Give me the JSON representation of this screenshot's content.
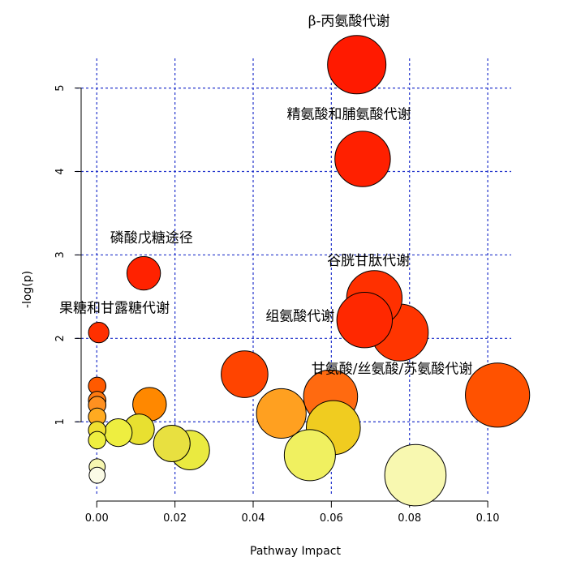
{
  "chart_data": {
    "type": "scatter",
    "title": "",
    "xlabel": "Pathway Impact",
    "ylabel": "-log(p)",
    "xlim": [
      -0.004,
      0.106
    ],
    "ylim": [
      0.05,
      5.55
    ],
    "xticks": [
      "0.00",
      "0.02",
      "0.04",
      "0.06",
      "0.08",
      "0.10"
    ],
    "xtick_values": [
      0.0,
      0.02,
      0.04,
      0.06,
      0.08,
      0.1
    ],
    "yticks": [
      "1",
      "2",
      "3",
      "4",
      "5"
    ],
    "ytick_values": [
      1,
      2,
      3,
      4,
      5
    ],
    "grid": true,
    "grid_color": "#2233cc",
    "points": [
      {
        "x": 0.0665,
        "y": 5.28,
        "r": 2.0,
        "color": "#ff1a00"
      },
      {
        "x": 0.068,
        "y": 4.15,
        "r": 1.9,
        "color": "#ff2000"
      },
      {
        "x": 0.012,
        "y": 2.78,
        "r": 1.15,
        "color": "#ff2200"
      },
      {
        "x": 0.0005,
        "y": 2.07,
        "r": 0.7,
        "color": "#ff3000"
      },
      {
        "x": 0.071,
        "y": 2.48,
        "r": 1.9,
        "color": "#ff3000"
      },
      {
        "x": 0.0685,
        "y": 2.22,
        "r": 1.9,
        "color": "#ff2800"
      },
      {
        "x": 0.0775,
        "y": 2.07,
        "r": 1.95,
        "color": "#ff3500"
      },
      {
        "x": 0.0378,
        "y": 1.57,
        "r": 1.6,
        "color": "#ff4400"
      },
      {
        "x": 0.0598,
        "y": 1.3,
        "r": 1.85,
        "color": "#ff6a10"
      },
      {
        "x": 0.1025,
        "y": 1.32,
        "r": 2.2,
        "color": "#ff5200"
      },
      {
        "x": 0.0472,
        "y": 1.1,
        "r": 1.7,
        "color": "#ffa020"
      },
      {
        "x": 0.0605,
        "y": 0.93,
        "r": 1.85,
        "color": "#f0cc20"
      },
      {
        "x": 0.0545,
        "y": 0.6,
        "r": 1.75,
        "color": "#f0f060"
      },
      {
        "x": 0.0815,
        "y": 0.36,
        "r": 2.1,
        "color": "#f8f8b0"
      },
      {
        "x": 0.0135,
        "y": 1.21,
        "r": 1.15,
        "color": "#ff8800"
      },
      {
        "x": 0.0108,
        "y": 0.91,
        "r": 1.05,
        "color": "#e8e030"
      },
      {
        "x": 0.0055,
        "y": 0.87,
        "r": 0.95,
        "color": "#eeee40"
      },
      {
        "x": 0.0192,
        "y": 0.74,
        "r": 1.25,
        "color": "#e8e040"
      },
      {
        "x": 0.0238,
        "y": 0.66,
        "r": 1.35,
        "color": "#eaea40"
      },
      {
        "x": 0.0001,
        "y": 1.43,
        "r": 0.6,
        "color": "#ff5a00"
      },
      {
        "x": 0.0001,
        "y": 1.26,
        "r": 0.6,
        "color": "#ff7a10"
      },
      {
        "x": 0.0001,
        "y": 1.2,
        "r": 0.6,
        "color": "#ff9020"
      },
      {
        "x": 0.0001,
        "y": 1.06,
        "r": 0.6,
        "color": "#ffaa20"
      },
      {
        "x": 0.0001,
        "y": 0.9,
        "r": 0.6,
        "color": "#f0e030"
      },
      {
        "x": 0.0001,
        "y": 0.78,
        "r": 0.6,
        "color": "#eeee40"
      },
      {
        "x": 0.0001,
        "y": 0.46,
        "r": 0.55,
        "color": "#f6f6b0"
      },
      {
        "x": 0.0001,
        "y": 0.36,
        "r": 0.55,
        "color": "#fbfbe6"
      }
    ],
    "annotations": [
      {
        "text": "β-丙氨酸代谢",
        "x": 0.0645,
        "y": 5.75
      },
      {
        "text": "精氨酸和脯氨酸代谢",
        "x": 0.0645,
        "y": 4.63
      },
      {
        "text": "磷酸戊糖途径",
        "x": 0.014,
        "y": 3.15
      },
      {
        "text": "果糖和甘露糖代谢",
        "x": 0.0045,
        "y": 2.31
      },
      {
        "text": "谷胱甘肽代谢",
        "x": 0.0695,
        "y": 2.88
      },
      {
        "text": "组氨酸代谢",
        "x": 0.052,
        "y": 2.21
      },
      {
        "text": "甘氨酸/丝氨酸/苏氨酸代谢",
        "x": 0.0755,
        "y": 1.58
      }
    ]
  }
}
